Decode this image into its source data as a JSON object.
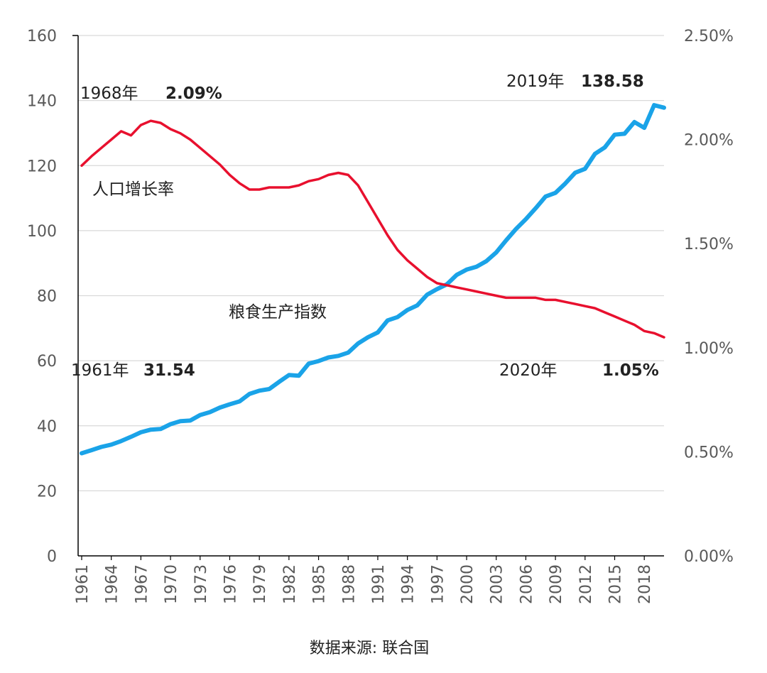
{
  "chart_data": {
    "type": "line",
    "source_note": "数据来源: 联合国",
    "x_tick_labels": [
      "1961",
      "1964",
      "1967",
      "1970",
      "1973",
      "1976",
      "1979",
      "1982",
      "1985",
      "1988",
      "1991",
      "1994",
      "1997",
      "2000",
      "2003",
      "2006",
      "2009",
      "2012",
      "2015",
      "2018"
    ],
    "left_axis": {
      "ylim": [
        0,
        160
      ],
      "ticks": [
        "0",
        "20",
        "40",
        "60",
        "80",
        "100",
        "120",
        "140",
        "160"
      ]
    },
    "right_axis": {
      "ylim": [
        0,
        0.025
      ],
      "ticks": [
        "0.00%",
        "0.50%",
        "1.00%",
        "1.50%",
        "2.00%",
        "2.50%"
      ]
    },
    "x": [
      1961,
      1962,
      1963,
      1964,
      1965,
      1966,
      1967,
      1968,
      1969,
      1970,
      1971,
      1972,
      1973,
      1974,
      1975,
      1976,
      1977,
      1978,
      1979,
      1980,
      1981,
      1982,
      1983,
      1984,
      1985,
      1986,
      1987,
      1988,
      1989,
      1990,
      1991,
      1992,
      1993,
      1994,
      1995,
      1996,
      1997,
      1998,
      1999,
      2000,
      2001,
      2002,
      2003,
      2004,
      2005,
      2006,
      2007,
      2008,
      2009,
      2010,
      2011,
      2012,
      2013,
      2014,
      2015,
      2016,
      2017,
      2018,
      2019,
      2020
    ],
    "series": [
      {
        "name": "粮食生产指数",
        "axis": "left",
        "color": "#1aa3e8",
        "values": [
          31.54,
          32.5,
          33.5,
          34.2,
          35.3,
          36.6,
          38.0,
          38.8,
          39.0,
          40.5,
          41.4,
          41.6,
          43.3,
          44.2,
          45.6,
          46.6,
          47.5,
          49.8,
          50.8,
          51.3,
          53.5,
          55.6,
          55.4,
          59.1,
          59.9,
          61.0,
          61.5,
          62.5,
          65.3,
          67.2,
          68.7,
          72.4,
          73.4,
          75.6,
          77.0,
          80.3,
          82.0,
          83.5,
          86.4,
          88.0,
          88.9,
          90.6,
          93.3,
          97.0,
          100.5,
          103.5,
          106.9,
          110.5,
          111.6,
          114.5,
          117.8,
          119.0,
          123.6,
          125.6,
          129.5,
          129.8,
          133.4,
          131.6,
          138.58,
          137.8
        ]
      },
      {
        "name": "人口增长率",
        "axis": "right",
        "color": "#e8102e",
        "values": [
          0.01875,
          0.0192,
          0.0196,
          0.02,
          0.0204,
          0.0202,
          0.0207,
          0.0209,
          0.0208,
          0.0205,
          0.0203,
          0.02,
          0.0196,
          0.0192,
          0.0188,
          0.0183,
          0.0179,
          0.0176,
          0.0176,
          0.0177,
          0.0177,
          0.0177,
          0.0178,
          0.018,
          0.0181,
          0.0183,
          0.0184,
          0.0183,
          0.0178,
          0.017,
          0.0162,
          0.0154,
          0.0147,
          0.0142,
          0.0138,
          0.0134,
          0.0131,
          0.013,
          0.0129,
          0.0128,
          0.0127,
          0.0126,
          0.0125,
          0.0124,
          0.0124,
          0.0124,
          0.0124,
          0.0123,
          0.0123,
          0.0122,
          0.0121,
          0.012,
          0.0119,
          0.0117,
          0.0115,
          0.0113,
          0.0111,
          0.0108,
          0.0107,
          0.0105
        ]
      }
    ],
    "annotations": {
      "food_start": {
        "year": "1961年",
        "value": "31.54"
      },
      "pop_peak": {
        "year": "1968年",
        "value": "2.09%"
      },
      "food_peak": {
        "year": "2019年",
        "value": "138.58"
      },
      "pop_end": {
        "year": "2020年",
        "value": "1.05%"
      },
      "pop_label": "人口增长率",
      "food_label": "粮食生产指数"
    }
  }
}
